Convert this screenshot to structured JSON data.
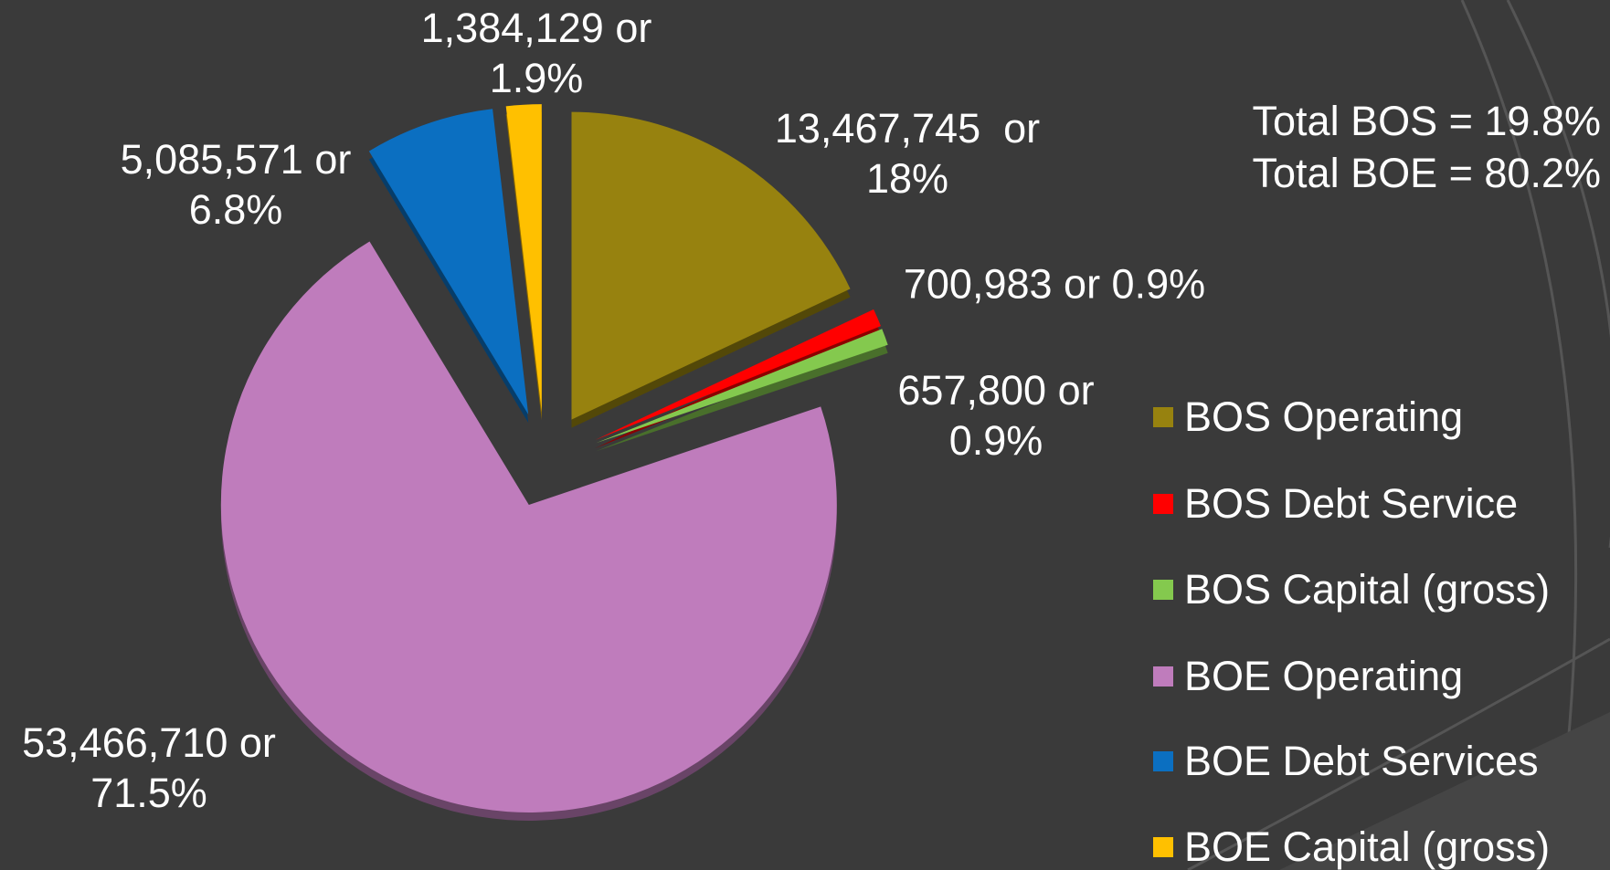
{
  "chart_data": {
    "type": "pie",
    "categories": [
      "BOS Operating",
      "BOS Debt Service",
      "BOS Capital (gross)",
      "BOE Operating",
      "BOE Debt Services",
      "BOE Capital (gross)"
    ],
    "values": [
      13467745,
      700983,
      657800,
      53466710,
      5085571,
      1384129
    ],
    "value_labels": [
      "13,467,745  or 18%",
      "700,983 or 0.9%",
      "657,800 or 0.9%",
      "53,466,710 or 71.5%",
      "5,085,571 or 6.8%",
      "1,384,129 or 1.9%"
    ],
    "colors": [
      "#97820f",
      "#ff0000",
      "#84c94e",
      "#bf7cbc",
      "#0b6fc1",
      "#ffc000"
    ],
    "annotations": [
      "Total BOS = 19.8%",
      "Total BOE = 80.2%"
    ],
    "legend": "right"
  }
}
